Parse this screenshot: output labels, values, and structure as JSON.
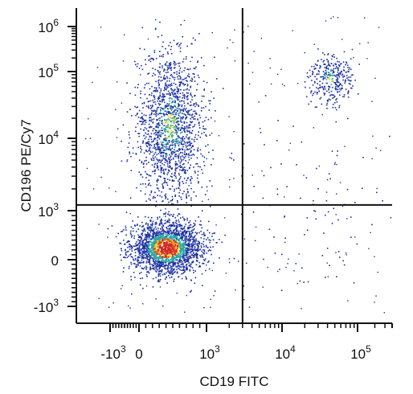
{
  "chart_data": {
    "type": "scatter",
    "title": "",
    "xlabel": "CD19 FITC",
    "ylabel": "CD196 PE/Cy7",
    "x_scale": "biexponential",
    "y_scale": "biexponential",
    "xlim": [
      -5000,
      400000
    ],
    "ylim": [
      -1500,
      1800000
    ],
    "x_ticks": [
      {
        "value": -1000,
        "base": "-10",
        "exp": "3"
      },
      {
        "value": 0,
        "base": "0",
        "exp": ""
      },
      {
        "value": 1000,
        "base": "10",
        "exp": "3"
      },
      {
        "value": 10000,
        "base": "10",
        "exp": "4"
      },
      {
        "value": 100000,
        "base": "10",
        "exp": "5"
      }
    ],
    "y_ticks": [
      {
        "value": -1000,
        "base": "-10",
        "exp": "3"
      },
      {
        "value": 0,
        "base": "0",
        "exp": ""
      },
      {
        "value": 1000,
        "base": "10",
        "exp": "3"
      },
      {
        "value": 10000,
        "base": "10",
        "exp": "4"
      },
      {
        "value": 100000,
        "base": "10",
        "exp": "5"
      },
      {
        "value": 1000000,
        "base": "10",
        "exp": "6"
      }
    ],
    "quadrant_gates": {
      "x": 3000,
      "y": 1200
    },
    "populations": [
      {
        "name_hidden": true,
        "x_center": 400,
        "y_center": 250,
        "count": 2200,
        "density": "high"
      },
      {
        "name_hidden": true,
        "x_center": 450,
        "y_center": 15000,
        "count": 1600,
        "density": "medium"
      },
      {
        "name_hidden": true,
        "x_center": 45000,
        "y_center": 80000,
        "count": 320,
        "density": "medium"
      },
      {
        "name_hidden": true,
        "x_center": 20000,
        "y_center": 1000,
        "count": 90,
        "density": "sparse"
      }
    ],
    "grid": false,
    "legend": "none",
    "colors": {
      "low_density": "#1a2fa3",
      "mid_density": "#2aa6a0",
      "high_density": "#e8d21c",
      "peak_density": "#d7261e",
      "axes": "#111111",
      "gates": "#111111"
    }
  }
}
